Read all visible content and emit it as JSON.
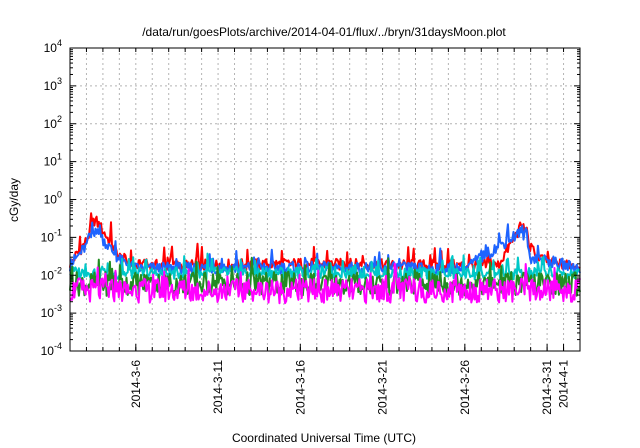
{
  "chart_data": {
    "type": "line",
    "title": "/data/run/goesPlots/archive/2014-04-01/flux/../bryn/31daysMoon.plot",
    "xlabel": "Coordinated Universal Time (UTC)",
    "ylabel": "cGy/day",
    "yscale": "log",
    "ylim": [
      0.0001,
      10000
    ],
    "y_ticks": [
      {
        "value": 0.0001,
        "base": "10",
        "exp": "-4"
      },
      {
        "value": 0.001,
        "base": "10",
        "exp": "-3"
      },
      {
        "value": 0.01,
        "base": "10",
        "exp": "-2"
      },
      {
        "value": 0.1,
        "base": "10",
        "exp": "-1"
      },
      {
        "value": 1,
        "base": "10",
        "exp": "0"
      },
      {
        "value": 10,
        "base": "10",
        "exp": "1"
      },
      {
        "value": 100,
        "base": "10",
        "exp": "2"
      },
      {
        "value": 1000,
        "base": "10",
        "exp": "3"
      },
      {
        "value": 10000,
        "base": "10",
        "exp": "4"
      }
    ],
    "xlim": [
      "2014-03-02",
      "2014-04-02"
    ],
    "x_ticks": [
      {
        "date": "2014-03-06",
        "label": "2014-3-6"
      },
      {
        "date": "2014-03-11",
        "label": "2014-3-11"
      },
      {
        "date": "2014-03-16",
        "label": "2014-3-16"
      },
      {
        "date": "2014-03-21",
        "label": "2014-3-21"
      },
      {
        "date": "2014-03-26",
        "label": "2014-3-26"
      },
      {
        "date": "2014-03-31",
        "label": "2014-3-31"
      },
      {
        "date": "2014-04-01",
        "label": "2014-4-1"
      }
    ],
    "grid": true,
    "legend": false,
    "series": [
      {
        "color": "#ff0000",
        "key_points": [
          [
            "2014-03-02",
            0.02
          ],
          [
            "2014-03-03",
            0.08
          ],
          [
            "2014-03-03.5",
            0.3
          ],
          [
            "2014-03-04",
            0.15
          ],
          [
            "2014-03-05",
            0.03
          ],
          [
            "2014-03-06",
            0.018
          ],
          [
            "2014-03-10",
            0.018
          ],
          [
            "2014-03-16",
            0.02
          ],
          [
            "2014-03-22",
            0.018
          ],
          [
            "2014-03-28",
            0.018
          ],
          [
            "2014-03-29.5",
            0.22
          ],
          [
            "2014-03-30",
            0.05
          ],
          [
            "2014-03-31",
            0.02
          ],
          [
            "2014-04-02",
            0.018
          ]
        ]
      },
      {
        "color": "#1e64ff",
        "key_points": [
          [
            "2014-03-02",
            0.018
          ],
          [
            "2014-03-03",
            0.06
          ],
          [
            "2014-03-03.5",
            0.15
          ],
          [
            "2014-03-04",
            0.09
          ],
          [
            "2014-03-05",
            0.025
          ],
          [
            "2014-03-06",
            0.015
          ],
          [
            "2014-03-16",
            0.016
          ],
          [
            "2014-03-26",
            0.015
          ],
          [
            "2014-03-29.5",
            0.15
          ],
          [
            "2014-03-30",
            0.03
          ],
          [
            "2014-04-02",
            0.015
          ]
        ]
      },
      {
        "color": "#00c8c8",
        "key_points": [
          [
            "2014-03-02",
            0.012
          ],
          [
            "2014-03-06",
            0.011
          ],
          [
            "2014-03-16",
            0.012
          ],
          [
            "2014-03-26",
            0.011
          ],
          [
            "2014-04-02",
            0.011
          ]
        ]
      },
      {
        "color": "#228b22",
        "key_points": [
          [
            "2014-03-02",
            0.006
          ],
          [
            "2014-03-16",
            0.006
          ],
          [
            "2014-04-02",
            0.006
          ]
        ]
      },
      {
        "color": "#ff00ff",
        "key_points": [
          [
            "2014-03-02",
            0.004
          ],
          [
            "2014-03-16",
            0.0038
          ],
          [
            "2014-04-02",
            0.004
          ]
        ]
      }
    ]
  }
}
